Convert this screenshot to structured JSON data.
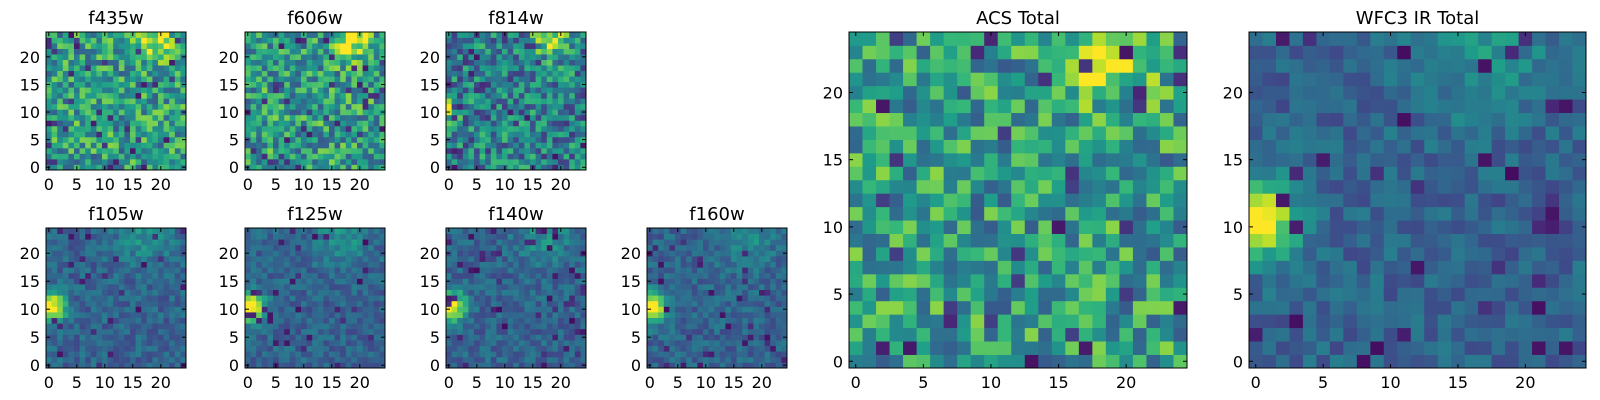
{
  "chart_data": [
    {
      "type": "heatmap",
      "title": "f435w",
      "xticks": [
        "0",
        "5",
        "10",
        "15",
        "20"
      ],
      "yticks": [
        "0",
        "5",
        "10",
        "15",
        "20"
      ],
      "xlim": [
        -0.5,
        24.5
      ],
      "ylim": [
        -0.5,
        24.5
      ],
      "colormap": "viridis"
    },
    {
      "type": "heatmap",
      "title": "f606w",
      "xticks": [
        "0",
        "5",
        "10",
        "15",
        "20"
      ],
      "yticks": [
        "0",
        "5",
        "10",
        "15",
        "20"
      ],
      "xlim": [
        -0.5,
        24.5
      ],
      "ylim": [
        -0.5,
        24.5
      ],
      "colormap": "viridis"
    },
    {
      "type": "heatmap",
      "title": "f814w",
      "xticks": [
        "0",
        "5",
        "10",
        "15",
        "20"
      ],
      "yticks": [
        "0",
        "5",
        "10",
        "15",
        "20"
      ],
      "xlim": [
        -0.5,
        24.5
      ],
      "ylim": [
        -0.5,
        24.5
      ],
      "colormap": "viridis"
    },
    {
      "type": "heatmap",
      "title": "f105w",
      "xticks": [
        "0",
        "5",
        "10",
        "15",
        "20"
      ],
      "yticks": [
        "0",
        "5",
        "10",
        "15",
        "20"
      ],
      "xlim": [
        -0.5,
        24.5
      ],
      "ylim": [
        -0.5,
        24.5
      ],
      "colormap": "viridis"
    },
    {
      "type": "heatmap",
      "title": "f125w",
      "xticks": [
        "0",
        "5",
        "10",
        "15",
        "20"
      ],
      "yticks": [
        "0",
        "5",
        "10",
        "15",
        "20"
      ],
      "xlim": [
        -0.5,
        24.5
      ],
      "ylim": [
        -0.5,
        24.5
      ],
      "colormap": "viridis"
    },
    {
      "type": "heatmap",
      "title": "f140w",
      "xticks": [
        "0",
        "5",
        "10",
        "15",
        "20"
      ],
      "yticks": [
        "0",
        "5",
        "10",
        "15",
        "20"
      ],
      "xlim": [
        -0.5,
        24.5
      ],
      "ylim": [
        -0.5,
        24.5
      ],
      "colormap": "viridis"
    },
    {
      "type": "heatmap",
      "title": "f160w",
      "xticks": [
        "0",
        "5",
        "10",
        "15",
        "20"
      ],
      "yticks": [
        "0",
        "5",
        "10",
        "15",
        "20"
      ],
      "xlim": [
        -0.5,
        24.5
      ],
      "ylim": [
        -0.5,
        24.5
      ],
      "colormap": "viridis"
    },
    {
      "type": "heatmap",
      "title": "ACS Total",
      "xticks": [
        "0",
        "5",
        "10",
        "15",
        "20"
      ],
      "yticks": [
        "0",
        "5",
        "10",
        "15",
        "20"
      ],
      "xlim": [
        -0.5,
        24.5
      ],
      "ylim": [
        -0.5,
        24.5
      ],
      "colormap": "viridis"
    },
    {
      "type": "heatmap",
      "title": "WFC3 IR Total",
      "xticks": [
        "0",
        "5",
        "10",
        "15",
        "20"
      ],
      "yticks": [
        "0",
        "5",
        "10",
        "15",
        "20"
      ],
      "xlim": [
        -0.5,
        24.5
      ],
      "ylim": [
        -0.5,
        24.5
      ],
      "colormap": "viridis"
    }
  ]
}
